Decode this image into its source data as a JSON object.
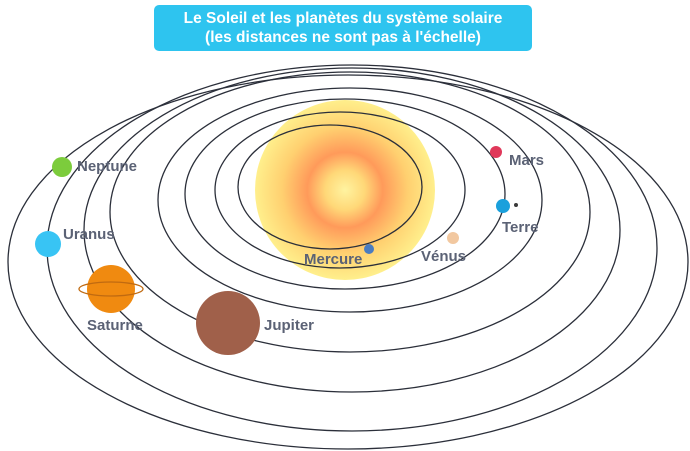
{
  "title": {
    "line1": "Le Soleil et les planètes du système solaire",
    "line2": "(les distances ne sont pas à l'échelle)"
  },
  "planets": {
    "mercure": {
      "label": "Mercure",
      "color": "#4a7cc0"
    },
    "venus": {
      "label": "Vénus",
      "color": "#f2c8a0"
    },
    "terre": {
      "label": "Terre",
      "color": "#1aa0dc"
    },
    "mars": {
      "label": "Mars",
      "color": "#e0385a"
    },
    "jupiter": {
      "label": "Jupiter",
      "color": "#a0604a"
    },
    "saturne": {
      "label": "Saturne",
      "color": "#f08a10"
    },
    "uranus": {
      "label": "Uranus",
      "color": "#38c4f4"
    },
    "neptune": {
      "label": "Neptune",
      "color": "#7ccc3c"
    }
  },
  "orbit_color": "#2b2f3a",
  "sun_colors": [
    "#fff3a0",
    "#ffcf6a",
    "#ff9a5a",
    "#ffeb8a"
  ]
}
